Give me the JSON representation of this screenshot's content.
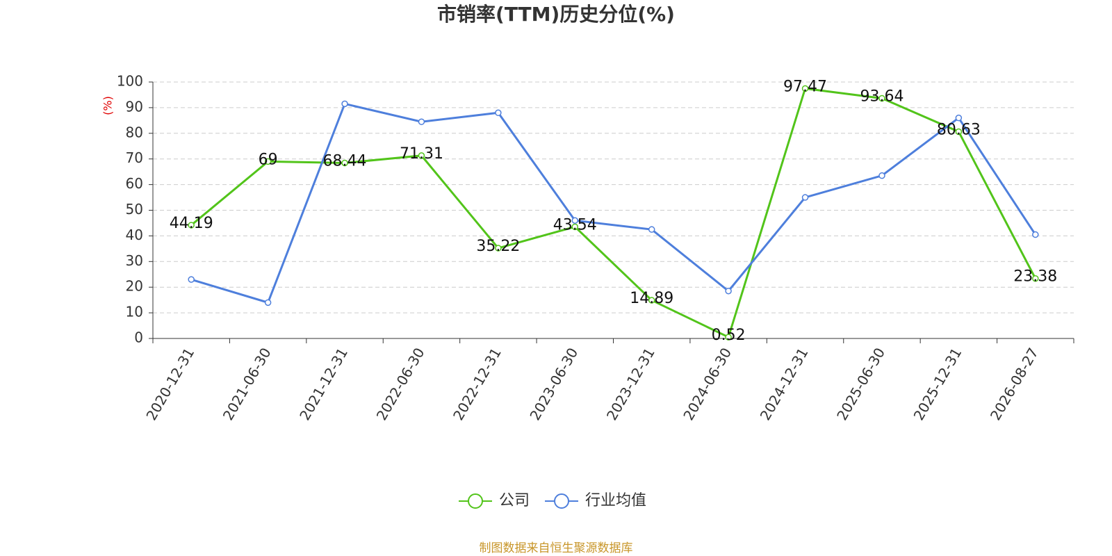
{
  "chart_data": {
    "type": "line",
    "title": "市销率(TTM)历史分位(%)",
    "y_label": "(%)",
    "categories": [
      "2020-12-31",
      "2021-06-30",
      "2021-12-31",
      "2022-06-30",
      "2022-12-31",
      "2023-06-30",
      "2023-12-31",
      "2024-06-30",
      "2024-12-31",
      "2025-06-30",
      "2025-12-31",
      "2026-08-27"
    ],
    "series": [
      {
        "name": "公司",
        "color": "#52c41a",
        "values": [
          44.19,
          69,
          68.44,
          71.31,
          35.22,
          43.54,
          14.89,
          0.52,
          97.47,
          93.64,
          80.63,
          23.38
        ],
        "show_labels": true
      },
      {
        "name": "行业均值",
        "color": "#4e7fdc",
        "values": [
          23,
          14,
          91.5,
          84.5,
          88,
          46,
          42.5,
          18.5,
          55,
          63.5,
          86,
          40.5
        ],
        "show_labels": false
      }
    ],
    "ylim": [
      0,
      100
    ],
    "yticks": [
      0,
      10,
      20,
      30,
      40,
      50,
      60,
      70,
      80,
      90,
      100
    ],
    "grid": true,
    "legend": "bottom",
    "source": "制图数据来自恒生聚源数据库"
  }
}
